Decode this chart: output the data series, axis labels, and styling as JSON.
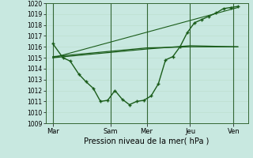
{
  "xlabel": "Pression niveau de la mer( hPa )",
  "background_color": "#c8e8e0",
  "grid_color_minor": "#bbddcc",
  "grid_color_major": "#99bbaa",
  "line_color": "#1a5c1a",
  "vline_color": "#336633",
  "ylim": [
    1009,
    1020
  ],
  "yticks": [
    1009,
    1010,
    1011,
    1012,
    1013,
    1014,
    1015,
    1016,
    1017,
    1018,
    1019,
    1020
  ],
  "xlim": [
    0,
    14
  ],
  "day_labels": [
    "Mar",
    "Sam",
    "Mer",
    "Jeu",
    "Ven"
  ],
  "day_positions": [
    0.5,
    4.5,
    7.0,
    10.0,
    13.0
  ],
  "vline_positions": [
    0.5,
    4.5,
    7.0,
    10.0,
    13.0
  ],
  "curve1_x": [
    0.5,
    1.2,
    1.7,
    2.3,
    2.8,
    3.3,
    3.8,
    4.3,
    4.8,
    5.3,
    5.8,
    6.3,
    6.8,
    7.3,
    7.8,
    8.3,
    8.8,
    9.3,
    9.8,
    10.3,
    10.8,
    11.3,
    11.8,
    12.3,
    12.8,
    13.3
  ],
  "curve1_y": [
    1016.3,
    1015.0,
    1014.7,
    1013.5,
    1012.8,
    1012.2,
    1011.0,
    1011.1,
    1012.0,
    1011.2,
    1010.7,
    1011.0,
    1011.1,
    1011.5,
    1012.6,
    1014.8,
    1015.1,
    1016.0,
    1017.3,
    1018.2,
    1018.5,
    1018.8,
    1019.1,
    1019.5,
    1019.6,
    1019.7
  ],
  "curve2_x": [
    0.5,
    7.0,
    10.0,
    13.3
  ],
  "curve2_y": [
    1015.0,
    1015.8,
    1016.1,
    1016.0
  ],
  "curve3_x": [
    0.5,
    7.0,
    10.0,
    13.3
  ],
  "curve3_y": [
    1015.1,
    1015.9,
    1016.0,
    1016.0
  ],
  "curve4_x": [
    0.5,
    13.3
  ],
  "curve4_y": [
    1015.0,
    1019.6
  ],
  "xlabel_fontsize": 7,
  "ytick_fontsize": 5.5,
  "xtick_fontsize": 6
}
